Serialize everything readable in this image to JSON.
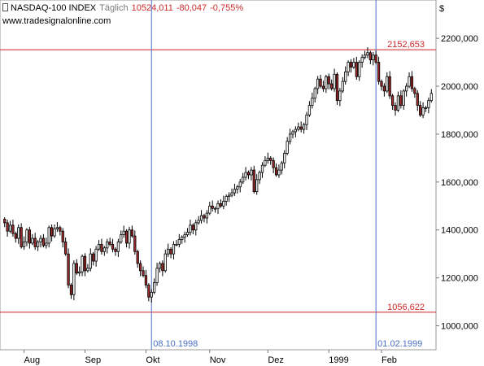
{
  "header": {
    "instrument": "NASDAQ-100 INDEX",
    "period": "Täglich",
    "last": "10524,011",
    "change": "-80,047",
    "change_pct": "-0,755%",
    "source": "www.tradesignalonline.com"
  },
  "currency_symbol": "$",
  "colors": {
    "candle_up": "#ffffff",
    "candle_down": "#a52a2a",
    "wick": "#000000",
    "hline": "#d02020",
    "vline": "#4a6fc8",
    "hlabel_text": "#cc2a2a",
    "vlabel_text": "#4a6fc8"
  },
  "chart_data": {
    "type": "candlestick",
    "title": "NASDAQ-100 INDEX",
    "ylim": [
      900000,
      2360000
    ],
    "y_ticks": [
      1000000,
      1200000,
      1400000,
      1600000,
      1800000,
      2000000,
      2200000
    ],
    "y_tick_labels": [
      "1000,000",
      "1200,000",
      "1400,000",
      "1600,000",
      "1800,000",
      "2000,000",
      "2200,000"
    ],
    "x_ticks": [
      {
        "label": "Aug",
        "index": 7
      },
      {
        "label": "Sep",
        "index": 29
      },
      {
        "label": "Okt",
        "index": 51
      },
      {
        "label": "Nov",
        "index": 74
      },
      {
        "label": "Dez",
        "index": 95
      },
      {
        "label": "1999",
        "index": 117
      },
      {
        "label": "Feb",
        "index": 136
      }
    ],
    "horizontal_lines": [
      {
        "value": 2152653,
        "label": "2152,653"
      },
      {
        "value": 1056622,
        "label": "1056,622"
      }
    ],
    "vertical_lines": [
      {
        "label": "08.10.1998",
        "index": 53
      },
      {
        "label": "01.02.1999",
        "index": 134
      }
    ],
    "close": [
      1430000,
      1395000,
      1420000,
      1385000,
      1365000,
      1410000,
      1330000,
      1350000,
      1400000,
      1345000,
      1365000,
      1330000,
      1350000,
      1365000,
      1335000,
      1345000,
      1410000,
      1375000,
      1405000,
      1410000,
      1395000,
      1350000,
      1300000,
      1170000,
      1130000,
      1260000,
      1220000,
      1225000,
      1290000,
      1230000,
      1240000,
      1300000,
      1270000,
      1320000,
      1340000,
      1310000,
      1325000,
      1350000,
      1340000,
      1320000,
      1310000,
      1350000,
      1380000,
      1395000,
      1345000,
      1400000,
      1375000,
      1310000,
      1260000,
      1230000,
      1210000,
      1170000,
      1120000,
      1140000,
      1180000,
      1240000,
      1260000,
      1230000,
      1300000,
      1320000,
      1300000,
      1340000,
      1340000,
      1360000,
      1370000,
      1380000,
      1390000,
      1420000,
      1400000,
      1430000,
      1440000,
      1460000,
      1450000,
      1470000,
      1500000,
      1490000,
      1490000,
      1510000,
      1500000,
      1520000,
      1540000,
      1545000,
      1555000,
      1570000,
      1580000,
      1600000,
      1620000,
      1640000,
      1630000,
      1650000,
      1560000,
      1610000,
      1640000,
      1670000,
      1690000,
      1700000,
      1690000,
      1660000,
      1630000,
      1650000,
      1680000,
      1720000,
      1770000,
      1800000,
      1810000,
      1820000,
      1830000,
      1820000,
      1840000,
      1880000,
      1920000,
      1950000,
      1990000,
      2030000,
      2000000,
      1990000,
      2040000,
      2010000,
      1990000,
      2050000,
      1940000,
      1980000,
      2020000,
      2060000,
      2100000,
      2080000,
      2100000,
      2040000,
      2100000,
      2120000,
      2130000,
      2140000,
      2110000,
      2130000,
      2100000,
      2020000,
      2000000,
      1980000,
      2040000,
      1960000,
      1920000,
      1900000,
      1960000,
      1920000,
      1980000,
      2000000,
      2040000,
      1990000,
      1970000,
      1920000,
      1880000,
      1910000,
      1910000,
      1940000,
      1970000
    ]
  }
}
